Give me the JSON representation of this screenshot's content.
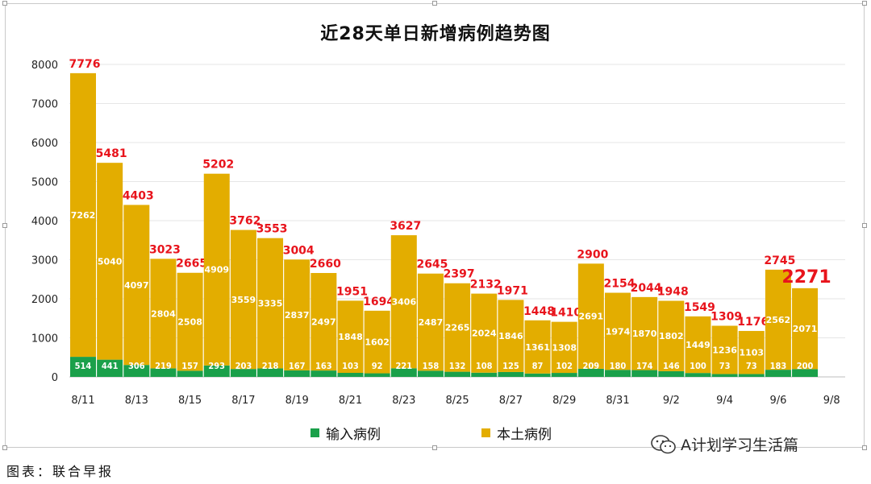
{
  "chart_data": {
    "type": "bar",
    "stacked": true,
    "title": "近28天单日新增病例趋势图",
    "categories": [
      "8/11",
      "8/12",
      "8/13",
      "8/14",
      "8/15",
      "8/16",
      "8/17",
      "8/18",
      "8/19",
      "8/20",
      "8/21",
      "8/22",
      "8/23",
      "8/24",
      "8/25",
      "8/26",
      "8/27",
      "8/28",
      "8/29",
      "8/30",
      "8/31",
      "9/1",
      "9/2",
      "9/3",
      "9/4",
      "9/5",
      "9/6",
      "9/7"
    ],
    "x_tick_labels": [
      "8/11",
      "8/13",
      "8/15",
      "8/17",
      "8/19",
      "8/21",
      "8/23",
      "8/25",
      "8/27",
      "8/29",
      "8/31",
      "9/2",
      "9/4",
      "9/6",
      "9/8"
    ],
    "series": [
      {
        "name": "输入病例",
        "color": "#1aa04a",
        "values": [
          514,
          441,
          306,
          219,
          157,
          293,
          203,
          218,
          167,
          163,
          103,
          92,
          221,
          158,
          132,
          108,
          125,
          87,
          102,
          209,
          180,
          174,
          146,
          100,
          73,
          73,
          183,
          200
        ]
      },
      {
        "name": "本土病例",
        "color": "#e3ad00",
        "values": [
          7262,
          5040,
          4097,
          2804,
          2508,
          4909,
          3559,
          3335,
          2837,
          2497,
          1848,
          1602,
          3406,
          2487,
          2265,
          2024,
          1846,
          1361,
          1308,
          2691,
          1974,
          1870,
          1802,
          1449,
          1236,
          1103,
          2562,
          2071
        ]
      }
    ],
    "totals": [
      7776,
      5481,
      4403,
      3023,
      2665,
      5202,
      3762,
      3553,
      3004,
      2660,
      1951,
      1694,
      3627,
      2645,
      2397,
      2132,
      1971,
      1448,
      1410,
      2900,
      2154,
      2044,
      1948,
      1549,
      1309,
      1176,
      2745,
      2271
    ],
    "y_ticks": [
      "0",
      "1000",
      "2000",
      "3000",
      "4000",
      "5000",
      "6000",
      "7000",
      "8000"
    ],
    "ylim": [
      0,
      8000
    ],
    "grid": true,
    "legend_position": "bottom",
    "total_label_color": "#e8141c"
  },
  "legend": {
    "import_label": "输入病例",
    "local_label": "本土病例"
  },
  "watermark": {
    "text": "A计划学习生活篇"
  },
  "source_text": "图表：联合早报"
}
